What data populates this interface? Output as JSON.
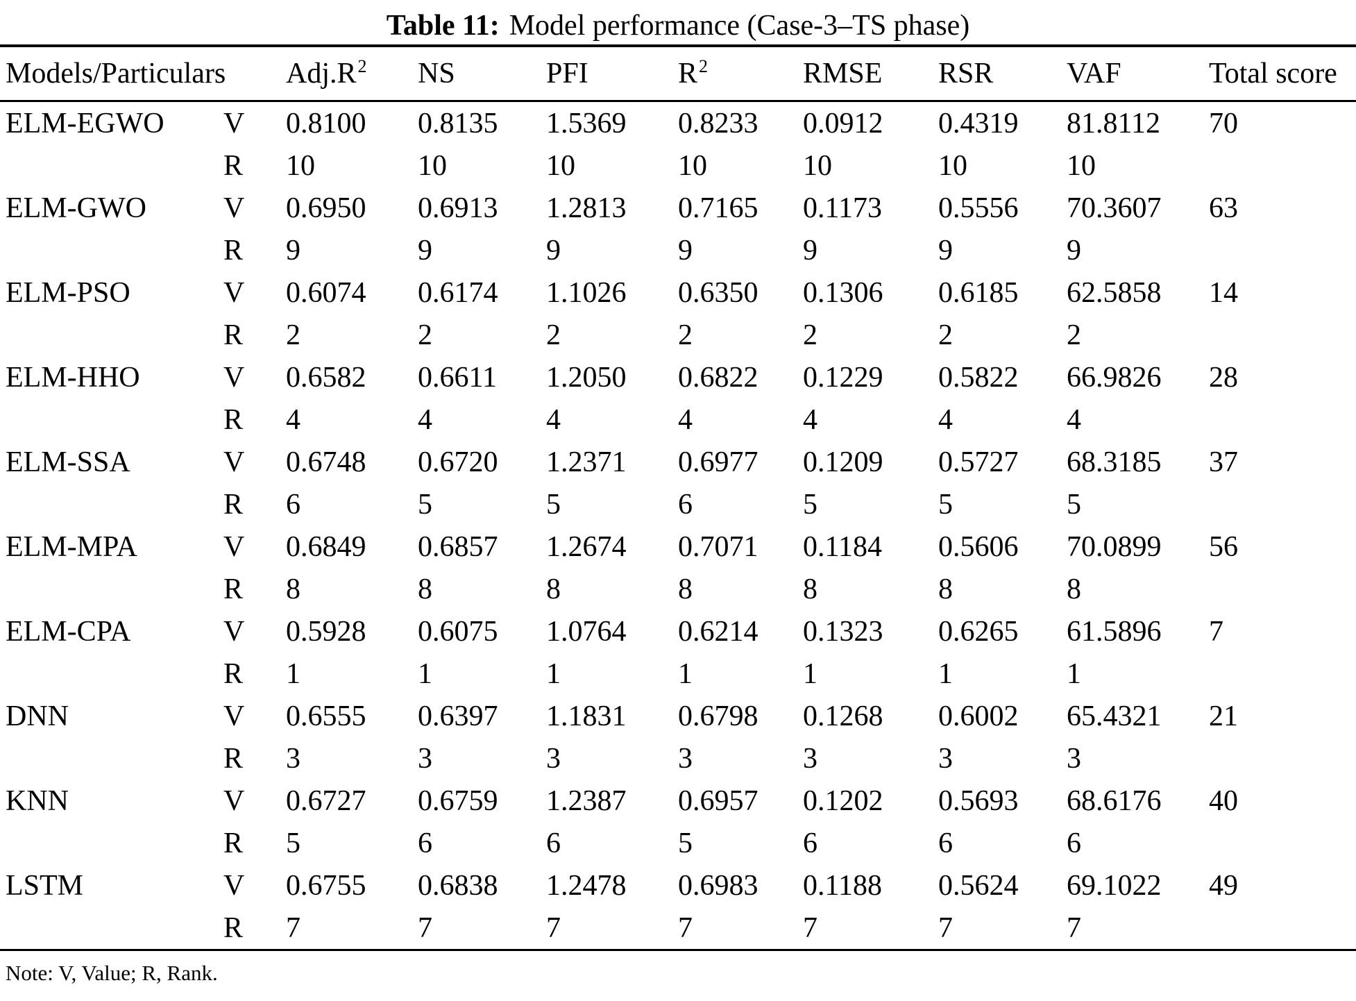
{
  "page": {
    "title_bold": "Table 11:",
    "title_rest": "Model performance (Case-3–TS phase)",
    "note": "Note: V, Value; R, Rank.",
    "text_color": "#000000",
    "background_color": "#ffffff"
  },
  "chart_data": {
    "type": "table",
    "title": "Table 11: Model performance (Case-3–TS phase)",
    "columns": [
      "Models/Particulars",
      "Adj.R2",
      "NS",
      "PFI",
      "R2",
      "RMSE",
      "RSR",
      "VAF",
      "Total score"
    ],
    "note": "Note: V, Value; R, Rank."
  },
  "table": {
    "value_row_label": "V",
    "rank_row_label": "R",
    "columns": [
      {
        "label": "Models/Particulars",
        "sup": ""
      },
      {
        "label": "Adj.R",
        "sup": "2"
      },
      {
        "label": "NS",
        "sup": ""
      },
      {
        "label": "PFI",
        "sup": ""
      },
      {
        "label": "R",
        "sup": "2"
      },
      {
        "label": "RMSE",
        "sup": ""
      },
      {
        "label": "RSR",
        "sup": ""
      },
      {
        "label": "VAF",
        "sup": ""
      },
      {
        "label": "Total score",
        "sup": ""
      }
    ],
    "rows": [
      {
        "model": "ELM-EGWO",
        "values": [
          "0.8100",
          "0.8135",
          "1.5369",
          "0.8233",
          "0.0912",
          "0.4319",
          "81.8112"
        ],
        "ranks": [
          "10",
          "10",
          "10",
          "10",
          "10",
          "10",
          "10"
        ],
        "total": "70"
      },
      {
        "model": "ELM-GWO",
        "values": [
          "0.6950",
          "0.6913",
          "1.2813",
          "0.7165",
          "0.1173",
          "0.5556",
          "70.3607"
        ],
        "ranks": [
          "9",
          "9",
          "9",
          "9",
          "9",
          "9",
          "9"
        ],
        "total": "63"
      },
      {
        "model": "ELM-PSO",
        "values": [
          "0.6074",
          "0.6174",
          "1.1026",
          "0.6350",
          "0.1306",
          "0.6185",
          "62.5858"
        ],
        "ranks": [
          "2",
          "2",
          "2",
          "2",
          "2",
          "2",
          "2"
        ],
        "total": "14"
      },
      {
        "model": "ELM-HHO",
        "values": [
          "0.6582",
          "0.6611",
          "1.2050",
          "0.6822",
          "0.1229",
          "0.5822",
          "66.9826"
        ],
        "ranks": [
          "4",
          "4",
          "4",
          "4",
          "4",
          "4",
          "4"
        ],
        "total": "28"
      },
      {
        "model": "ELM-SSA",
        "values": [
          "0.6748",
          "0.6720",
          "1.2371",
          "0.6977",
          "0.1209",
          "0.5727",
          "68.3185"
        ],
        "ranks": [
          "6",
          "5",
          "5",
          "6",
          "5",
          "5",
          "5"
        ],
        "total": "37"
      },
      {
        "model": "ELM-MPA",
        "values": [
          "0.6849",
          "0.6857",
          "1.2674",
          "0.7071",
          "0.1184",
          "0.5606",
          "70.0899"
        ],
        "ranks": [
          "8",
          "8",
          "8",
          "8",
          "8",
          "8",
          "8"
        ],
        "total": "56"
      },
      {
        "model": "ELM-CPA",
        "values": [
          "0.5928",
          "0.6075",
          "1.0764",
          "0.6214",
          "0.1323",
          "0.6265",
          "61.5896"
        ],
        "ranks": [
          "1",
          "1",
          "1",
          "1",
          "1",
          "1",
          "1"
        ],
        "total": "7"
      },
      {
        "model": "DNN",
        "values": [
          "0.6555",
          "0.6397",
          "1.1831",
          "0.6798",
          "0.1268",
          "0.6002",
          "65.4321"
        ],
        "ranks": [
          "3",
          "3",
          "3",
          "3",
          "3",
          "3",
          "3"
        ],
        "total": "21"
      },
      {
        "model": "KNN",
        "values": [
          "0.6727",
          "0.6759",
          "1.2387",
          "0.6957",
          "0.1202",
          "0.5693",
          "68.6176"
        ],
        "ranks": [
          "5",
          "6",
          "6",
          "5",
          "6",
          "6",
          "6"
        ],
        "total": "40"
      },
      {
        "model": "LSTM",
        "values": [
          "0.6755",
          "0.6838",
          "1.2478",
          "0.6983",
          "0.1188",
          "0.5624",
          "69.1022"
        ],
        "ranks": [
          "7",
          "7",
          "7",
          "7",
          "7",
          "7",
          "7"
        ],
        "total": "49"
      }
    ]
  }
}
